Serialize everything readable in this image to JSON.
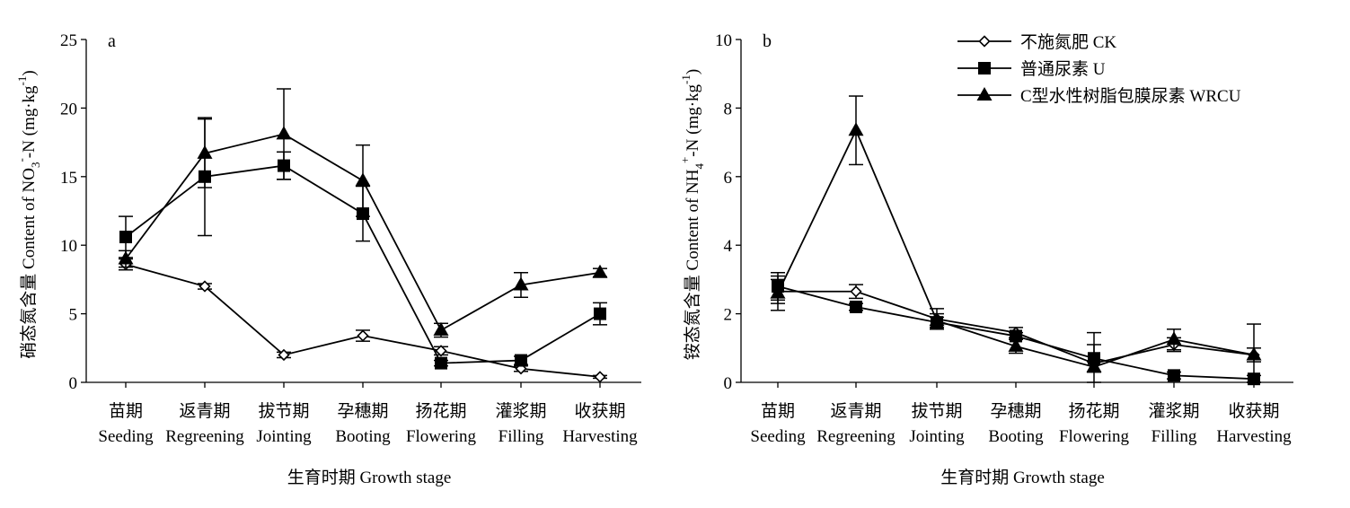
{
  "chart_data": [
    {
      "type": "line",
      "panel_label": "a",
      "categories_cn": [
        "苗期",
        "返青期",
        "拔节期",
        "孕穗期",
        "扬花期",
        "灌浆期",
        "收获期"
      ],
      "categories_en": [
        "Seeding",
        "Regreening",
        "Jointing",
        "Booting",
        "Flowering",
        "Filling",
        "Harvesting"
      ],
      "xlabel": "生育时期 Growth stage",
      "ylabel_parts": [
        "硝态氮含量 Content of NO",
        "3",
        "-",
        "-N (mg·kg",
        "-1",
        ")"
      ],
      "ylim": [
        0,
        25
      ],
      "yticks": [
        0,
        5,
        10,
        15,
        20,
        25
      ],
      "series": [
        {
          "name": "不施氮肥 CK",
          "marker": "diamond-open",
          "values": [
            8.6,
            7.0,
            2.0,
            3.4,
            2.3,
            1.0,
            0.4
          ],
          "errors": [
            0.4,
            0.2,
            0.2,
            0.4,
            0.3,
            0.2,
            0.1
          ]
        },
        {
          "name": "普通尿素 U",
          "marker": "square-filled",
          "values": [
            10.6,
            15.0,
            15.8,
            12.3,
            1.4,
            1.6,
            5.0
          ],
          "errors": [
            1.5,
            4.3,
            1.0,
            2.0,
            0.2,
            0.3,
            0.8
          ]
        },
        {
          "name": "C型水性树脂包膜尿素 WRCU",
          "marker": "triangle-filled",
          "values": [
            9.0,
            16.7,
            18.1,
            14.7,
            3.8,
            7.1,
            8.0
          ],
          "errors": [
            0.6,
            2.5,
            3.3,
            2.6,
            0.5,
            0.9,
            0.3
          ]
        }
      ]
    },
    {
      "type": "line",
      "panel_label": "b",
      "categories_cn": [
        "苗期",
        "返青期",
        "拔节期",
        "孕穗期",
        "扬花期",
        "灌浆期",
        "收获期"
      ],
      "categories_en": [
        "Seeding",
        "Regreening",
        "Jointing",
        "Booting",
        "Flowering",
        "Filling",
        "Harvesting"
      ],
      "xlabel": "生育时期 Growth stage",
      "ylabel_parts": [
        "铵态氮含量 Content of NH",
        "4",
        "+",
        "-N (mg·kg",
        "-1",
        ")"
      ],
      "ylim": [
        0,
        10
      ],
      "yticks": [
        0,
        2,
        4,
        6,
        8,
        10
      ],
      "legend_position": "top-right",
      "series": [
        {
          "name": "不施氮肥 CK",
          "marker": "diamond-open",
          "values": [
            2.65,
            2.65,
            1.85,
            1.45,
            0.55,
            1.1,
            0.8
          ],
          "errors": [
            0.35,
            0.2,
            0.3,
            0.15,
            0.9,
            0.2,
            0.9
          ]
        },
        {
          "name": "普通尿素 U",
          "marker": "square-filled",
          "values": [
            2.8,
            2.2,
            1.75,
            1.35,
            0.7,
            0.2,
            0.1
          ],
          "errors": [
            0.4,
            0.1,
            0.15,
            0.1,
            0.4,
            0.1,
            0.1
          ]
        },
        {
          "name": "C型水性树脂包膜尿素 WRCU",
          "marker": "triangle-filled",
          "values": [
            2.6,
            7.35,
            1.8,
            1.05,
            0.45,
            1.25,
            0.8
          ],
          "errors": [
            0.5,
            1.0,
            0.2,
            0.2,
            0.15,
            0.3,
            0.2
          ]
        }
      ]
    }
  ]
}
